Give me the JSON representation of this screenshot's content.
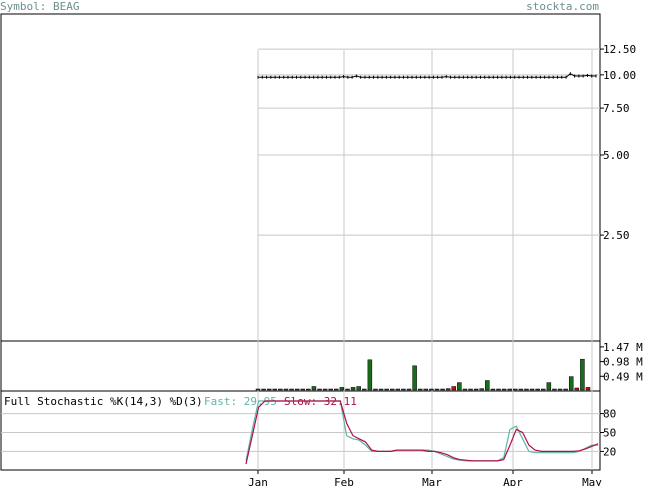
{
  "header": {
    "symbol_label": "Symbol: BEAG",
    "brand": "stockta.com"
  },
  "colors": {
    "header_text": "#6b8e8e",
    "frame": "#000000",
    "grid": "#c8c8c8",
    "price_line": "#000000",
    "volume_up": "#1a6b1a",
    "volume_down": "#cc1111",
    "fast_line": "#5fb3a8",
    "slow_line": "#b0104a"
  },
  "chart_data": [
    {
      "type": "line",
      "panel": "price",
      "y_scale": "log",
      "y_ticks": [
        "12.50",
        "10.00",
        "7.50",
        "5.00",
        "2.50"
      ],
      "ylim": [
        1.0,
        15.0
      ],
      "x_tick_labels": [
        "Jan",
        "Feb",
        "Mar",
        "Apr",
        "May"
      ],
      "series": [
        {
          "values": [
            9.8,
            9.8,
            9.8,
            9.8,
            9.8,
            9.8,
            9.8,
            9.8,
            9.8,
            9.8,
            9.8,
            9.8,
            9.8,
            9.8,
            9.8,
            9.8,
            9.8,
            9.8,
            9.8,
            9.8,
            9.85,
            9.8,
            9.8,
            9.9,
            9.8,
            9.8,
            9.8,
            9.8,
            9.8,
            9.8,
            9.8,
            9.8,
            9.8,
            9.8,
            9.8,
            9.8,
            9.8,
            9.8,
            9.8,
            9.8,
            9.8,
            9.8,
            9.8,
            9.8,
            9.85,
            9.8,
            9.8,
            9.8,
            9.8,
            9.8,
            9.8,
            9.8,
            9.8,
            9.8,
            9.8,
            9.8,
            9.8,
            9.8,
            9.8,
            9.8,
            9.8,
            9.8,
            9.8,
            9.8,
            9.8,
            9.8,
            9.8,
            9.8,
            9.8,
            9.8,
            9.8,
            9.8,
            9.8,
            10.1,
            9.9,
            9.9,
            9.9,
            9.95,
            9.9,
            9.9
          ]
        }
      ]
    },
    {
      "type": "bar",
      "panel": "volume",
      "y_ticks": [
        "1.47 M",
        "0.98 M",
        "0.49 M"
      ],
      "ylim": [
        0,
        1.6
      ],
      "values": [
        0.05,
        0.02,
        0.01,
        0.01,
        0.02,
        0.01,
        0.01,
        0.01,
        0.01,
        0.01,
        0.15,
        0.01,
        0.05,
        0.01,
        0.01,
        0.12,
        0.01,
        0.12,
        0.15,
        0.06,
        1.04,
        0.01,
        0.01,
        0.01,
        0.01,
        0.01,
        0.01,
        0.01,
        0.84,
        0.01,
        0.01,
        0.04,
        0.02,
        0.02,
        0.08,
        0.15,
        0.28,
        0.02,
        0.01,
        0.01,
        0.08,
        0.35,
        0.05,
        0.02,
        0.03,
        0.06,
        0.02,
        0.02,
        0.03,
        0.01,
        0.02,
        0.05,
        0.28,
        0.03,
        0.01,
        0.01,
        0.48,
        0.1,
        1.06,
        0.12
      ],
      "colors_up": [
        true,
        true,
        true,
        true,
        true,
        true,
        true,
        true,
        true,
        true,
        true,
        true,
        true,
        true,
        true,
        true,
        true,
        true,
        true,
        true,
        true,
        true,
        true,
        true,
        true,
        true,
        true,
        true,
        true,
        true,
        true,
        true,
        true,
        true,
        false,
        false,
        true,
        true,
        true,
        true,
        true,
        true,
        true,
        false,
        true,
        true,
        false,
        true,
        false,
        true,
        true,
        true,
        true,
        true,
        true,
        true,
        true,
        false,
        true,
        false
      ]
    },
    {
      "type": "line",
      "panel": "stochastic",
      "title": "Full Stochastic %K(14,3) %D(3)",
      "legend": [
        {
          "name": "Fast",
          "value": "29.95"
        },
        {
          "name": "Slow",
          "value": "32.11"
        }
      ],
      "y_ticks": [
        "80",
        "50",
        "20"
      ],
      "ylim": [
        0,
        100
      ],
      "series": [
        {
          "name": "Fast",
          "values": [
            5,
            55,
            100,
            100,
            100,
            100,
            100,
            100,
            100,
            100,
            100,
            100,
            100,
            100,
            100,
            100,
            45,
            40,
            38,
            30,
            20,
            20,
            20,
            20,
            22,
            22,
            22,
            22,
            22,
            22,
            20,
            16,
            12,
            8,
            6,
            5,
            5,
            5,
            5,
            5,
            5,
            10,
            55,
            60,
            40,
            20,
            18,
            18,
            18,
            18,
            18,
            18,
            18,
            20,
            25,
            30,
            30
          ]
        },
        {
          "name": "Slow",
          "values": [
            0,
            45,
            90,
            100,
            100,
            100,
            100,
            100,
            100,
            100,
            100,
            100,
            100,
            100,
            100,
            100,
            65,
            45,
            40,
            35,
            22,
            20,
            20,
            20,
            22,
            22,
            22,
            22,
            22,
            20,
            20,
            18,
            15,
            10,
            7,
            6,
            5,
            5,
            5,
            5,
            5,
            7,
            30,
            55,
            50,
            30,
            22,
            20,
            20,
            20,
            20,
            20,
            20,
            21,
            24,
            28,
            32
          ]
        }
      ]
    }
  ]
}
